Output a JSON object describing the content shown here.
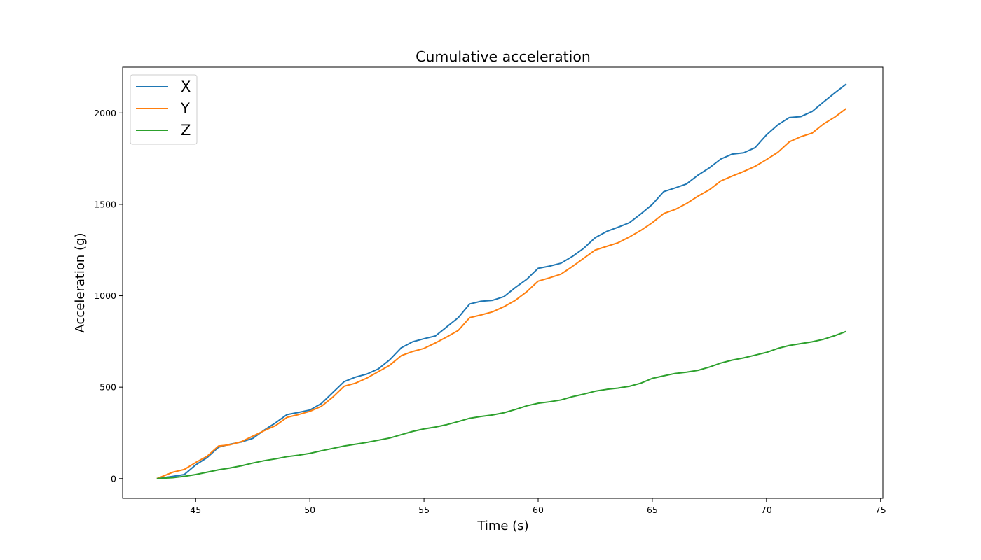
{
  "chart_data": {
    "type": "line",
    "title": "Cumulative acceleration",
    "xlabel": "Time (s)",
    "ylabel": "Acceleration (g)",
    "xlim": [
      41.8,
      75.1
    ],
    "ylim": [
      -108,
      2250
    ],
    "xticks": [
      45,
      50,
      55,
      60,
      65,
      70,
      75
    ],
    "yticks": [
      0,
      500,
      1000,
      1500,
      2000
    ],
    "grid": false,
    "legend_position": "top-left",
    "series": [
      {
        "name": "X",
        "color": "#1f77b4",
        "x": [
          43.3,
          44.0,
          44.5,
          45.0,
          45.5,
          46.0,
          46.5,
          47.0,
          47.5,
          48.0,
          48.5,
          49.0,
          49.5,
          50.0,
          50.5,
          51.0,
          51.5,
          52.0,
          52.5,
          53.0,
          53.5,
          54.0,
          54.5,
          55.0,
          55.5,
          56.0,
          56.5,
          57.0,
          57.5,
          58.0,
          58.5,
          59.0,
          59.5,
          60.0,
          60.5,
          61.0,
          61.5,
          62.0,
          62.5,
          63.0,
          63.5,
          64.0,
          64.5,
          65.0,
          65.5,
          66.0,
          66.5,
          67.0,
          67.5,
          68.0,
          68.5,
          69.0,
          69.5,
          70.0,
          70.5,
          71.0,
          71.5,
          72.0,
          72.5,
          73.0,
          73.5
        ],
        "y": [
          0,
          12,
          22,
          75,
          115,
          172,
          188,
          200,
          220,
          265,
          305,
          350,
          362,
          375,
          410,
          470,
          530,
          555,
          572,
          600,
          650,
          715,
          748,
          765,
          780,
          830,
          880,
          955,
          970,
          975,
          995,
          1045,
          1090,
          1150,
          1162,
          1178,
          1215,
          1260,
          1318,
          1352,
          1375,
          1400,
          1448,
          1500,
          1570,
          1590,
          1612,
          1660,
          1700,
          1748,
          1775,
          1782,
          1810,
          1880,
          1935,
          1975,
          1980,
          2008,
          2060,
          2110,
          2158
        ]
      },
      {
        "name": "Y",
        "color": "#ff7f0e",
        "x": [
          43.3,
          44.0,
          44.5,
          45.0,
          45.5,
          46.0,
          46.5,
          47.0,
          47.5,
          48.0,
          48.5,
          49.0,
          49.5,
          50.0,
          50.5,
          51.0,
          51.5,
          52.0,
          52.5,
          53.0,
          53.5,
          54.0,
          54.5,
          55.0,
          55.5,
          56.0,
          56.5,
          57.0,
          57.5,
          58.0,
          58.5,
          59.0,
          59.5,
          60.0,
          60.5,
          61.0,
          61.5,
          62.0,
          62.5,
          63.0,
          63.5,
          64.0,
          64.5,
          65.0,
          65.5,
          66.0,
          66.5,
          67.0,
          67.5,
          68.0,
          68.5,
          69.0,
          69.5,
          70.0,
          70.5,
          71.0,
          71.5,
          72.0,
          72.5,
          73.0,
          73.5
        ],
        "y": [
          0,
          35,
          50,
          88,
          122,
          178,
          185,
          202,
          232,
          262,
          290,
          335,
          350,
          368,
          395,
          445,
          505,
          522,
          550,
          585,
          620,
          672,
          695,
          712,
          742,
          775,
          810,
          880,
          895,
          912,
          940,
          975,
          1022,
          1080,
          1098,
          1118,
          1160,
          1205,
          1250,
          1270,
          1290,
          1322,
          1358,
          1400,
          1450,
          1472,
          1505,
          1545,
          1580,
          1628,
          1655,
          1680,
          1708,
          1745,
          1785,
          1842,
          1870,
          1890,
          1940,
          1978,
          2025
        ]
      },
      {
        "name": "Z",
        "color": "#2ca02c",
        "x": [
          43.3,
          44.0,
          44.5,
          45.0,
          45.5,
          46.0,
          46.5,
          47.0,
          47.5,
          48.0,
          48.5,
          49.0,
          49.5,
          50.0,
          50.5,
          51.0,
          51.5,
          52.0,
          52.5,
          53.0,
          53.5,
          54.0,
          54.5,
          55.0,
          55.5,
          56.0,
          56.5,
          57.0,
          57.5,
          58.0,
          58.5,
          59.0,
          59.5,
          60.0,
          60.5,
          61.0,
          61.5,
          62.0,
          62.5,
          63.0,
          63.5,
          64.0,
          64.5,
          65.0,
          65.5,
          66.0,
          66.5,
          67.0,
          67.5,
          68.0,
          68.5,
          69.0,
          69.5,
          70.0,
          70.5,
          71.0,
          71.5,
          72.0,
          72.5,
          73.0,
          73.5
        ],
        "y": [
          0,
          5,
          12,
          22,
          35,
          48,
          58,
          70,
          85,
          98,
          108,
          120,
          128,
          138,
          152,
          165,
          178,
          188,
          198,
          210,
          222,
          240,
          258,
          272,
          282,
          295,
          312,
          330,
          340,
          348,
          360,
          378,
          398,
          412,
          420,
          430,
          448,
          462,
          478,
          488,
          495,
          505,
          522,
          548,
          562,
          575,
          582,
          592,
          610,
          632,
          648,
          660,
          675,
          690,
          712,
          728,
          738,
          748,
          762,
          782,
          805
        ]
      }
    ]
  }
}
